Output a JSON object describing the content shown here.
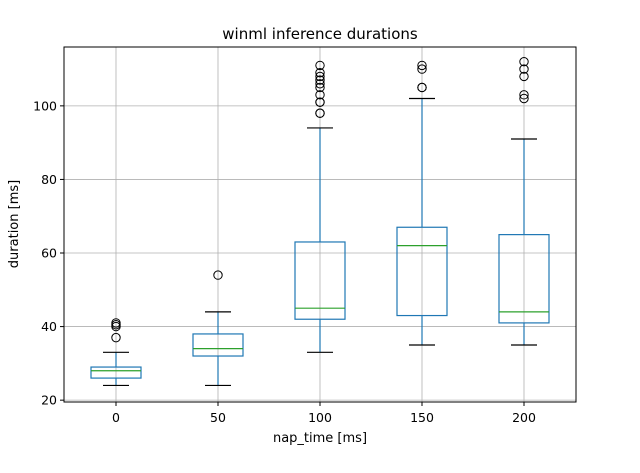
{
  "chart_data": {
    "type": "box",
    "title": "winml inference durations",
    "xlabel": "nap_time [ms]",
    "ylabel": "duration [ms]",
    "ylim": [
      19.5,
      116
    ],
    "yticks": [
      20,
      40,
      60,
      80,
      100
    ],
    "grid": true,
    "colors": {
      "box": "#1f77b4",
      "median": "#2ca02c",
      "whisker": "#1f77b4",
      "cap": "#000000",
      "grid": "#b0b0b0",
      "flier": "#000000"
    },
    "categories": [
      "0",
      "50",
      "100",
      "150",
      "200"
    ],
    "boxes": [
      {
        "category": "0",
        "whislo": 24,
        "q1": 26,
        "med": 28,
        "q3": 29,
        "whishi": 33,
        "fliers": [
          37,
          40,
          40.5,
          41
        ]
      },
      {
        "category": "50",
        "whislo": 24,
        "q1": 32,
        "med": 34,
        "q3": 38,
        "whishi": 44,
        "fliers": [
          54
        ]
      },
      {
        "category": "100",
        "whislo": 33,
        "q1": 42,
        "med": 45,
        "q3": 63,
        "whishi": 94,
        "fliers": [
          98,
          98,
          101,
          101,
          103,
          105,
          106,
          107,
          108,
          109,
          111
        ]
      },
      {
        "category": "150",
        "whislo": 35,
        "q1": 43,
        "med": 62,
        "q3": 67,
        "whishi": 102,
        "fliers": [
          105,
          105,
          110,
          111
        ]
      },
      {
        "category": "200",
        "whislo": 35,
        "q1": 41,
        "med": 44,
        "q3": 65,
        "whishi": 91,
        "fliers": [
          102,
          103,
          108,
          110,
          112
        ]
      }
    ]
  }
}
